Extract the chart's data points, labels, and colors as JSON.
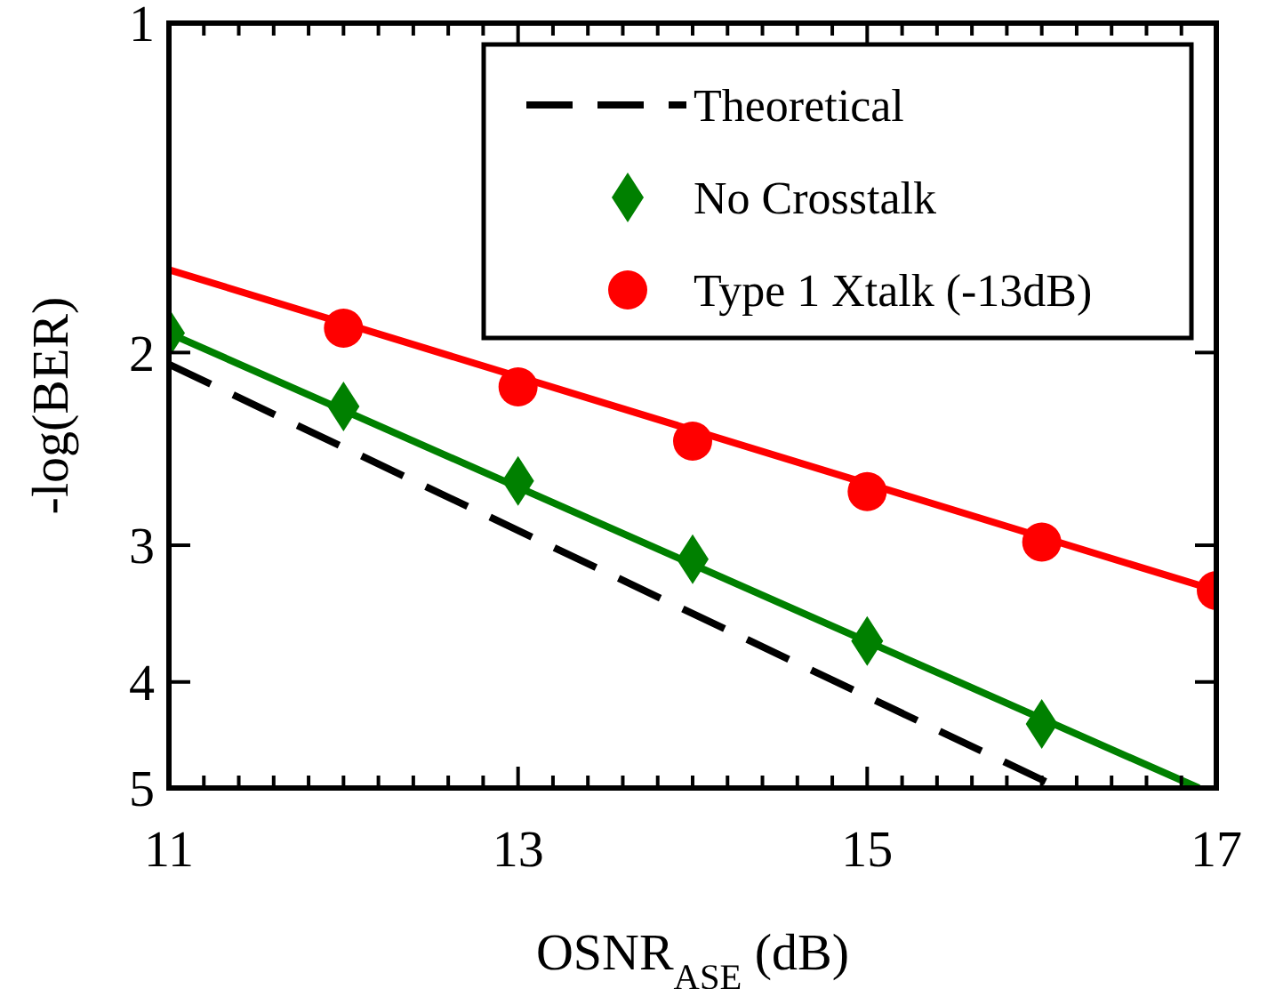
{
  "chart_data": {
    "type": "line",
    "xlabel": "OSNR$_{ASE}$ (dB)",
    "ylabel": "-log(BER)",
    "log": "y",
    "xlim": [
      11,
      17
    ],
    "ylim": [
      5,
      1
    ],
    "xticks": [
      11,
      {
        "value": 11.2,
        "label": null
      },
      {
        "value": 11.4,
        "label": null
      },
      {
        "value": 11.6,
        "label": null
      },
      {
        "value": 11.8,
        "label": null
      },
      {
        "value": 12,
        "label": null
      },
      {
        "value": 12.2,
        "label": null
      },
      {
        "value": 12.4,
        "label": null
      },
      {
        "value": 12.6,
        "label": null
      },
      {
        "value": 12.8,
        "label": null
      },
      13,
      {
        "value": 13.2,
        "label": null
      },
      {
        "value": 13.4,
        "label": null
      },
      {
        "value": 13.6,
        "label": null
      },
      {
        "value": 13.8,
        "label": null
      },
      {
        "value": 14,
        "label": null
      },
      {
        "value": 14.2,
        "label": null
      },
      {
        "value": 14.4,
        "label": null
      },
      {
        "value": 14.6,
        "label": null
      },
      {
        "value": 14.8,
        "label": null
      },
      15,
      {
        "value": 15.2,
        "label": null
      },
      {
        "value": 15.4,
        "label": null
      },
      {
        "value": 15.6,
        "label": null
      },
      {
        "value": 15.8,
        "label": null
      },
      {
        "value": 16,
        "label": null
      },
      {
        "value": 16.2,
        "label": null
      },
      {
        "value": 16.4,
        "label": null
      },
      {
        "value": 16.6,
        "label": null
      },
      {
        "value": 16.8,
        "label": null
      },
      17
    ],
    "yticks": [
      1,
      2,
      3,
      4,
      5
    ],
    "grid": false,
    "legend": "top right",
    "series": [
      {
        "name": "Theoretical",
        "line_style": "dashed",
        "marker": "none",
        "color": "#000000",
        "x": [
          11,
          16.1
        ],
        "values": [
          2.05,
          5
        ]
      },
      {
        "line_style": "solid",
        "marker": "none",
        "color": "#008000",
        "x": [
          11,
          16.9
        ],
        "values": [
          1.92,
          5
        ]
      },
      {
        "line_style": "solid",
        "marker": "none",
        "color": "#ff0000",
        "x": [
          11,
          17
        ],
        "values": [
          1.68,
          3.3
        ]
      },
      {
        "name": "No Crosstalk",
        "type": "scatter",
        "marker": "diamond",
        "color": "#008000",
        "x": [
          11,
          12,
          13,
          14,
          15,
          16
        ],
        "values": [
          1.92,
          2.24,
          2.62,
          3.09,
          3.67,
          4.37
        ]
      },
      {
        "name": "Type 1 Xtalk (-13dB)",
        "type": "scatter",
        "marker": "circle",
        "color": "#ff0000",
        "x": [
          12,
          13,
          14,
          15,
          16,
          17
        ],
        "values": [
          1.9,
          2.15,
          2.41,
          2.68,
          2.98,
          3.3
        ]
      }
    ]
  }
}
